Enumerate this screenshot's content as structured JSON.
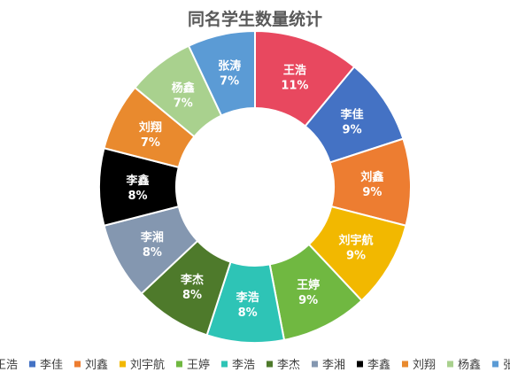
{
  "chart_data": {
    "type": "pie",
    "variant": "donut",
    "title": "同名学生数量统计",
    "legend_position": "bottom",
    "slices": [
      {
        "name": "王浩",
        "value": 11,
        "label": "11%",
        "color": "#E8485F"
      },
      {
        "name": "李佳",
        "value": 9,
        "label": "9%",
        "color": "#4472C4"
      },
      {
        "name": "刘鑫",
        "value": 9,
        "label": "9%",
        "color": "#ED7D31"
      },
      {
        "name": "刘宇航",
        "value": 9,
        "label": "9%",
        "color": "#F2B800"
      },
      {
        "name": "王婷",
        "value": 9,
        "label": "9%",
        "color": "#70B841"
      },
      {
        "name": "李浩",
        "value": 8,
        "label": "8%",
        "color": "#2EC4B6"
      },
      {
        "name": "李杰",
        "value": 8,
        "label": "8%",
        "color": "#4E7A2B"
      },
      {
        "name": "李湘",
        "value": 8,
        "label": "8%",
        "color": "#8497B0"
      },
      {
        "name": "李鑫",
        "value": 8,
        "label": "8%",
        "color": "#000000"
      },
      {
        "name": "刘翔",
        "value": 7,
        "label": "7%",
        "color": "#E98A2E"
      },
      {
        "name": "杨鑫",
        "value": 7,
        "label": "7%",
        "color": "#A9D18E"
      },
      {
        "name": "张涛",
        "value": 7,
        "label": "7%",
        "color": "#5B9BD5"
      }
    ]
  }
}
